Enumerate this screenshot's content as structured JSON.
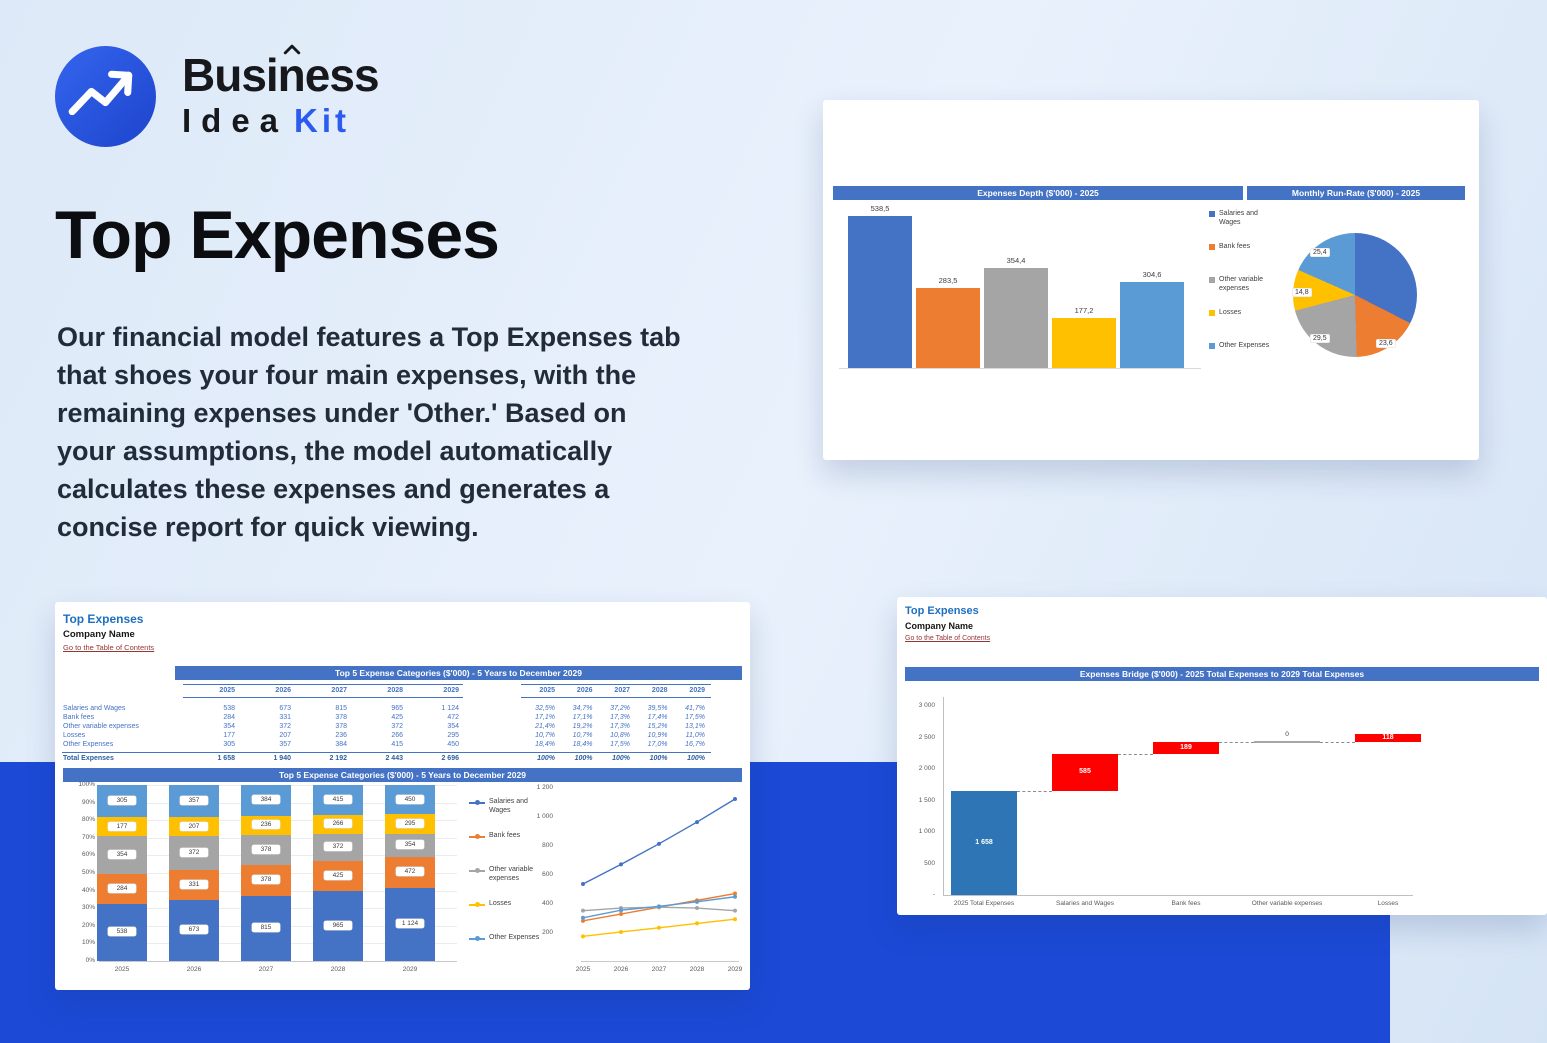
{
  "brand": {
    "line1": "Business",
    "line2_left": "Idea",
    "line2_right": "Kit"
  },
  "hero": {
    "title": "Top Expenses",
    "description_lines": [
      "Our financial model features a Top Expenses tab",
      "that shoes your four main expenses, with the",
      "remaining expenses under 'Other.' Based on",
      "your assumptions, the model automatically",
      "calculates these expenses and generates a",
      "concise report for quick viewing."
    ]
  },
  "colors": {
    "accent_band_blue": "#1C4AD6",
    "header_blue": "#4472C4",
    "link_maroon": "#953735",
    "series": [
      "#4472C4",
      "#ED7D31",
      "#A5A5A5",
      "#FFC000",
      "#5B9BD5"
    ],
    "waterfall_start": "#2E75B6",
    "waterfall_increase": "#FF0000"
  },
  "dashboard": {
    "bar_header": "Expenses Depth ($'000) - 2025",
    "pie_header": "Monthly Run-Rate ($'000) - 2025"
  },
  "sheet1": {
    "title": "Top Expenses",
    "company": "Company Name",
    "link": "Go to the Table of Contents",
    "table_header": "Top 5 Expense Categories ($'000) - 5 Years to December 2029",
    "chart_header": "Top 5 Expense Categories ($'000) - 5 Years to December 2029",
    "years": [
      "2025",
      "2026",
      "2027",
      "2028",
      "2029"
    ],
    "rows": [
      {
        "label": "Salaries and Wages",
        "values": [
          "538",
          "673",
          "815",
          "965",
          "1 124"
        ],
        "pcts": [
          "32,5%",
          "34,7%",
          "37,2%",
          "39,5%",
          "41,7%"
        ]
      },
      {
        "label": "Bank fees",
        "values": [
          "284",
          "331",
          "378",
          "425",
          "472"
        ],
        "pcts": [
          "17,1%",
          "17,1%",
          "17,3%",
          "17,4%",
          "17,5%"
        ]
      },
      {
        "label": "Other variable expenses",
        "values": [
          "354",
          "372",
          "378",
          "372",
          "354"
        ],
        "pcts": [
          "21,4%",
          "19,2%",
          "17,3%",
          "15,2%",
          "13,1%"
        ]
      },
      {
        "label": "Losses",
        "values": [
          "177",
          "207",
          "236",
          "266",
          "295"
        ],
        "pcts": [
          "10,7%",
          "10,7%",
          "10,8%",
          "10,9%",
          "11,0%"
        ]
      },
      {
        "label": "Other Expenses",
        "values": [
          "305",
          "357",
          "384",
          "415",
          "450"
        ],
        "pcts": [
          "18,4%",
          "18,4%",
          "17,5%",
          "17,0%",
          "16,7%"
        ]
      }
    ],
    "total": {
      "label": "Total Expenses",
      "values": [
        "1 658",
        "1 940",
        "2 192",
        "2 443",
        "2 696"
      ],
      "pcts": [
        "100%",
        "100%",
        "100%",
        "100%",
        "100%"
      ]
    }
  },
  "sheet2": {
    "title": "Top Expenses",
    "company": "Company Name",
    "link": "Go to the Table of Contents",
    "header": "Expenses Bridge ($'000) - 2025 Total Expenses to 2029 Total Expenses"
  },
  "chart_data": [
    {
      "id": "expenses-depth-bar",
      "type": "bar",
      "title": "Expenses Depth ($'000) - 2025",
      "categories": [
        "Salaries and Wages",
        "Bank fees",
        "Other variable expenses",
        "Losses",
        "Other Expenses"
      ],
      "values": [
        538.5,
        283.5,
        354.4,
        177.2,
        304.6
      ],
      "value_labels": [
        "538,5",
        "283,5",
        "354,4",
        "177,2",
        "304,6"
      ],
      "colors": [
        "#4472C4",
        "#ED7D31",
        "#A5A5A5",
        "#FFC000",
        "#5B9BD5"
      ],
      "legend_position": "right",
      "ylim": [
        0,
        600
      ],
      "grid": false
    },
    {
      "id": "monthly-run-rate-pie",
      "type": "pie",
      "title": "Monthly Run-Rate ($'000) - 2025",
      "labels": [
        "Salaries and Wages",
        "Bank fees",
        "Other variable expenses",
        "Losses",
        "Other Expenses"
      ],
      "values": [
        44.9,
        23.6,
        29.5,
        14.8,
        25.4
      ],
      "shown_value_labels": [
        "25,4",
        "14,8",
        "29,5",
        "23,6"
      ],
      "colors": [
        "#4472C4",
        "#ED7D31",
        "#A5A5A5",
        "#FFC000",
        "#5B9BD5"
      ]
    },
    {
      "id": "top5-stacked-bar",
      "type": "bar",
      "stacked": true,
      "percent_stacked": true,
      "title": "Top 5 Expense Categories ($'000) - 5 Years to December 2029",
      "categories": [
        "2025",
        "2026",
        "2027",
        "2028",
        "2029"
      ],
      "series": [
        {
          "name": "Salaries and Wages",
          "color": "#4472C4",
          "values": [
            538,
            673,
            815,
            965,
            1124
          ],
          "labels": [
            "538",
            "673",
            "815",
            "965",
            "1 124"
          ]
        },
        {
          "name": "Bank fees",
          "color": "#ED7D31",
          "values": [
            284,
            331,
            378,
            425,
            472
          ],
          "labels": [
            "284",
            "331",
            "378",
            "425",
            "472"
          ]
        },
        {
          "name": "Other variable expenses",
          "color": "#A5A5A5",
          "values": [
            354,
            372,
            378,
            372,
            354
          ],
          "labels": [
            "354",
            "372",
            "378",
            "372",
            "354"
          ]
        },
        {
          "name": "Losses",
          "color": "#FFC000",
          "values": [
            177,
            207,
            236,
            266,
            295
          ],
          "labels": [
            "177",
            "207",
            "236",
            "266",
            "295"
          ]
        },
        {
          "name": "Other Expenses",
          "color": "#5B9BD5",
          "values": [
            305,
            357,
            384,
            415,
            450
          ],
          "labels": [
            "305",
            "357",
            "384",
            "415",
            "450"
          ]
        }
      ],
      "yticks": [
        "0%",
        "10%",
        "20%",
        "30%",
        "40%",
        "50%",
        "60%",
        "70%",
        "80%",
        "90%",
        "100%"
      ]
    },
    {
      "id": "top5-lines",
      "type": "line",
      "x": [
        "2025",
        "2026",
        "2027",
        "2028",
        "2029"
      ],
      "series": [
        {
          "name": "Salaries and Wages",
          "color": "#4472C4",
          "values": [
            538,
            673,
            815,
            965,
            1124
          ]
        },
        {
          "name": "Bank fees",
          "color": "#ED7D31",
          "values": [
            284,
            331,
            378,
            425,
            472
          ]
        },
        {
          "name": "Other variable expenses",
          "color": "#A5A5A5",
          "values": [
            354,
            372,
            378,
            372,
            354
          ]
        },
        {
          "name": "Losses",
          "color": "#FFC000",
          "values": [
            177,
            207,
            236,
            266,
            295
          ]
        },
        {
          "name": "Other Expenses",
          "color": "#5B9BD5",
          "values": [
            305,
            357,
            384,
            415,
            450
          ]
        }
      ],
      "ylim": [
        0,
        1200
      ],
      "yticks": [
        "1 200",
        "1 000",
        "800",
        "600",
        "400",
        "200"
      ],
      "legend_position": "left"
    },
    {
      "id": "expenses-bridge-waterfall",
      "type": "bar",
      "subtype": "waterfall",
      "title": "Expenses Bridge ($'000) - 2025 Total Expenses to 2029 Total Expenses",
      "categories": [
        "2025 Total Expenses",
        "Salaries and Wages",
        "Bank fees",
        "Other variable expenses",
        "Losses"
      ],
      "values": [
        1658,
        585,
        189,
        0,
        118
      ],
      "value_labels": [
        "1 658",
        "585",
        "189",
        "0",
        "118"
      ],
      "bar_colors": [
        "#2E75B6",
        "#FF0000",
        "#FF0000",
        "#A6A6A6",
        "#FF0000"
      ],
      "ylim": [
        0,
        3000
      ],
      "yticks": [
        "3 000",
        "2 500",
        "2 000",
        "1 500",
        "1 000",
        "500",
        "-"
      ]
    }
  ]
}
